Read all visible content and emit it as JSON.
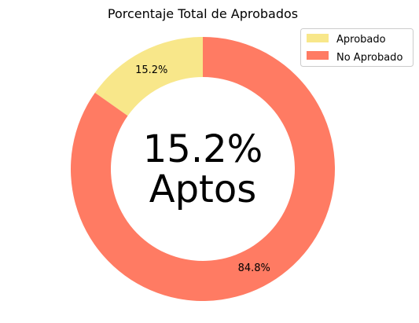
{
  "chart_data": {
    "type": "pie",
    "donut": true,
    "title": "Porcentaje Total de Aprobados",
    "categories": [
      "Aprobado",
      "No Aprobado"
    ],
    "values": [
      15.2,
      84.8
    ],
    "value_labels": [
      "15.2%",
      "84.8%"
    ],
    "colors": [
      "#f8e78a",
      "#ff7b63"
    ],
    "center_text": [
      "15.2%",
      "Aptos"
    ],
    "start_angle_deg": 90,
    "direction": "counterclockwise",
    "legend": {
      "position": "top-right",
      "entries": [
        "Aprobado",
        "No Aprobado"
      ]
    }
  }
}
